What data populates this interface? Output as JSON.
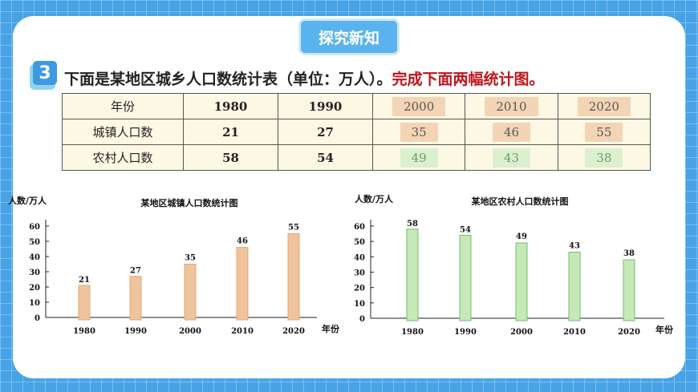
{
  "header": {
    "title": "探究新知"
  },
  "question": {
    "number": "3",
    "text": "下面是某地区城乡人口数统计表（单位：万人）。",
    "instruction": "完成下面两幅统计图。"
  },
  "table": {
    "header": [
      "年份",
      "1980",
      "1990",
      "2000",
      "2010",
      "2020"
    ],
    "rows": [
      {
        "label": "城镇人口数",
        "values": [
          "21",
          "27",
          "35",
          "46",
          "55"
        ]
      },
      {
        "label": "农村人口数",
        "values": [
          "58",
          "54",
          "49",
          "43",
          "38"
        ]
      }
    ]
  },
  "colors": {
    "urban_bar": "#efc49d",
    "urban_bar_stroke": "#e0a878",
    "rural_bar": "#c8e8b8",
    "rural_bar_stroke": "#6cc06c"
  },
  "chart_data": [
    {
      "type": "bar",
      "title": "某地区城镇人口数统计图",
      "ylabel": "人数/万人",
      "xlabel": "年份",
      "categories": [
        "1980",
        "1990",
        "2000",
        "2010",
        "2020"
      ],
      "values": [
        21,
        27,
        35,
        46,
        55
      ],
      "data_labels": [
        "21",
        "27",
        "35",
        "46",
        "55"
      ],
      "yticks": [
        "0",
        "10",
        "20",
        "30",
        "40",
        "50",
        "60"
      ],
      "ylim": [
        0,
        60
      ],
      "grid": false
    },
    {
      "type": "bar",
      "title": "某地区农村人口数统计图",
      "ylabel": "人数/万人",
      "xlabel": "年份",
      "categories": [
        "1980",
        "1990",
        "2000",
        "2010",
        "2020"
      ],
      "values": [
        58,
        54,
        49,
        43,
        38
      ],
      "data_labels": [
        "58",
        "54",
        "49",
        "43",
        "38"
      ],
      "yticks": [
        "0",
        "10",
        "20",
        "30",
        "40",
        "50",
        "60"
      ],
      "ylim": [
        0,
        60
      ],
      "grid": false
    }
  ]
}
